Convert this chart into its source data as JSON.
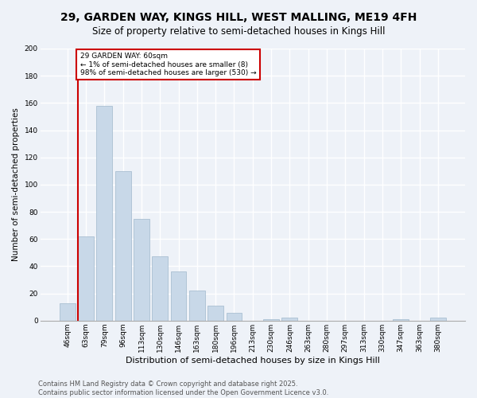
{
  "title": "29, GARDEN WAY, KINGS HILL, WEST MALLING, ME19 4FH",
  "subtitle": "Size of property relative to semi-detached houses in Kings Hill",
  "xlabel": "Distribution of semi-detached houses by size in Kings Hill",
  "ylabel": "Number of semi-detached properties",
  "bar_color": "#c8d8e8",
  "bar_edge_color": "#a0b8cc",
  "background_color": "#eef2f8",
  "grid_color": "#ffffff",
  "categories": [
    "46sqm",
    "63sqm",
    "79sqm",
    "96sqm",
    "113sqm",
    "130sqm",
    "146sqm",
    "163sqm",
    "180sqm",
    "196sqm",
    "213sqm",
    "230sqm",
    "246sqm",
    "263sqm",
    "280sqm",
    "297sqm",
    "313sqm",
    "330sqm",
    "347sqm",
    "363sqm",
    "380sqm"
  ],
  "values": [
    13,
    62,
    158,
    110,
    75,
    47,
    36,
    22,
    11,
    6,
    0,
    1,
    2,
    0,
    0,
    0,
    0,
    0,
    1,
    0,
    2
  ],
  "ylim": [
    0,
    200
  ],
  "yticks": [
    0,
    20,
    40,
    60,
    80,
    100,
    120,
    140,
    160,
    180,
    200
  ],
  "property_label": "29 GARDEN WAY: 60sqm",
  "pct_smaller": 1,
  "num_smaller": 8,
  "pct_larger": 98,
  "num_larger": 530,
  "red_line_color": "#cc0000",
  "annotation_box_color": "#ffffff",
  "annotation_box_edge_color": "#cc0000",
  "footer_text": "Contains HM Land Registry data © Crown copyright and database right 2025.\nContains public sector information licensed under the Open Government Licence v3.0.",
  "title_fontsize": 10,
  "subtitle_fontsize": 8.5,
  "xlabel_fontsize": 8,
  "ylabel_fontsize": 7.5,
  "tick_fontsize": 6.5,
  "footer_fontsize": 6
}
